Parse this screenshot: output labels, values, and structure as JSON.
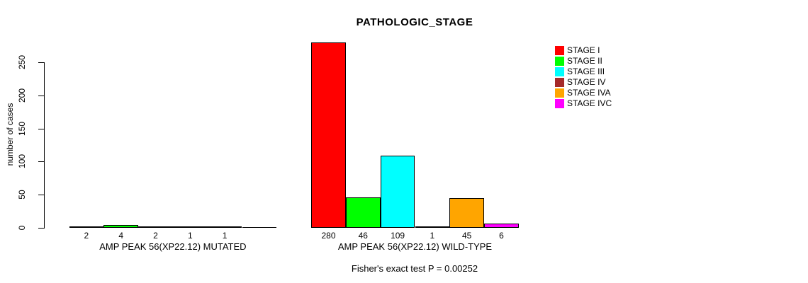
{
  "chart_data": {
    "type": "bar",
    "title": "PATHOLOGIC_STAGE",
    "ylabel": "number of cases",
    "xlabel": "",
    "yticks": [
      0,
      50,
      100,
      150,
      200,
      250
    ],
    "ylim": [
      0,
      285
    ],
    "grid": false,
    "legend_position": "top-right",
    "categories": [
      "STAGE I",
      "STAGE II",
      "STAGE III",
      "STAGE IV",
      "STAGE IVA",
      "STAGE IVC"
    ],
    "colors": [
      "#FF0000",
      "#00FF00",
      "#00FFFF",
      "#A52A2A",
      "#FFA500",
      "#FF00FF"
    ],
    "groups": [
      {
        "label": "AMP PEAK 56(XP22.12) MUTATED",
        "values": [
          2,
          4,
          2,
          1,
          1,
          0
        ],
        "bar_labels": [
          "2",
          "4",
          "2",
          "1",
          "1",
          ""
        ]
      },
      {
        "label": "AMP PEAK 56(XP22.12) WILD-TYPE",
        "values": [
          280,
          46,
          109,
          1,
          45,
          6
        ],
        "bar_labels": [
          "280",
          "46",
          "109",
          "1",
          "45",
          "6"
        ]
      }
    ],
    "footnote": "Fisher's exact test P = 0.00252"
  }
}
